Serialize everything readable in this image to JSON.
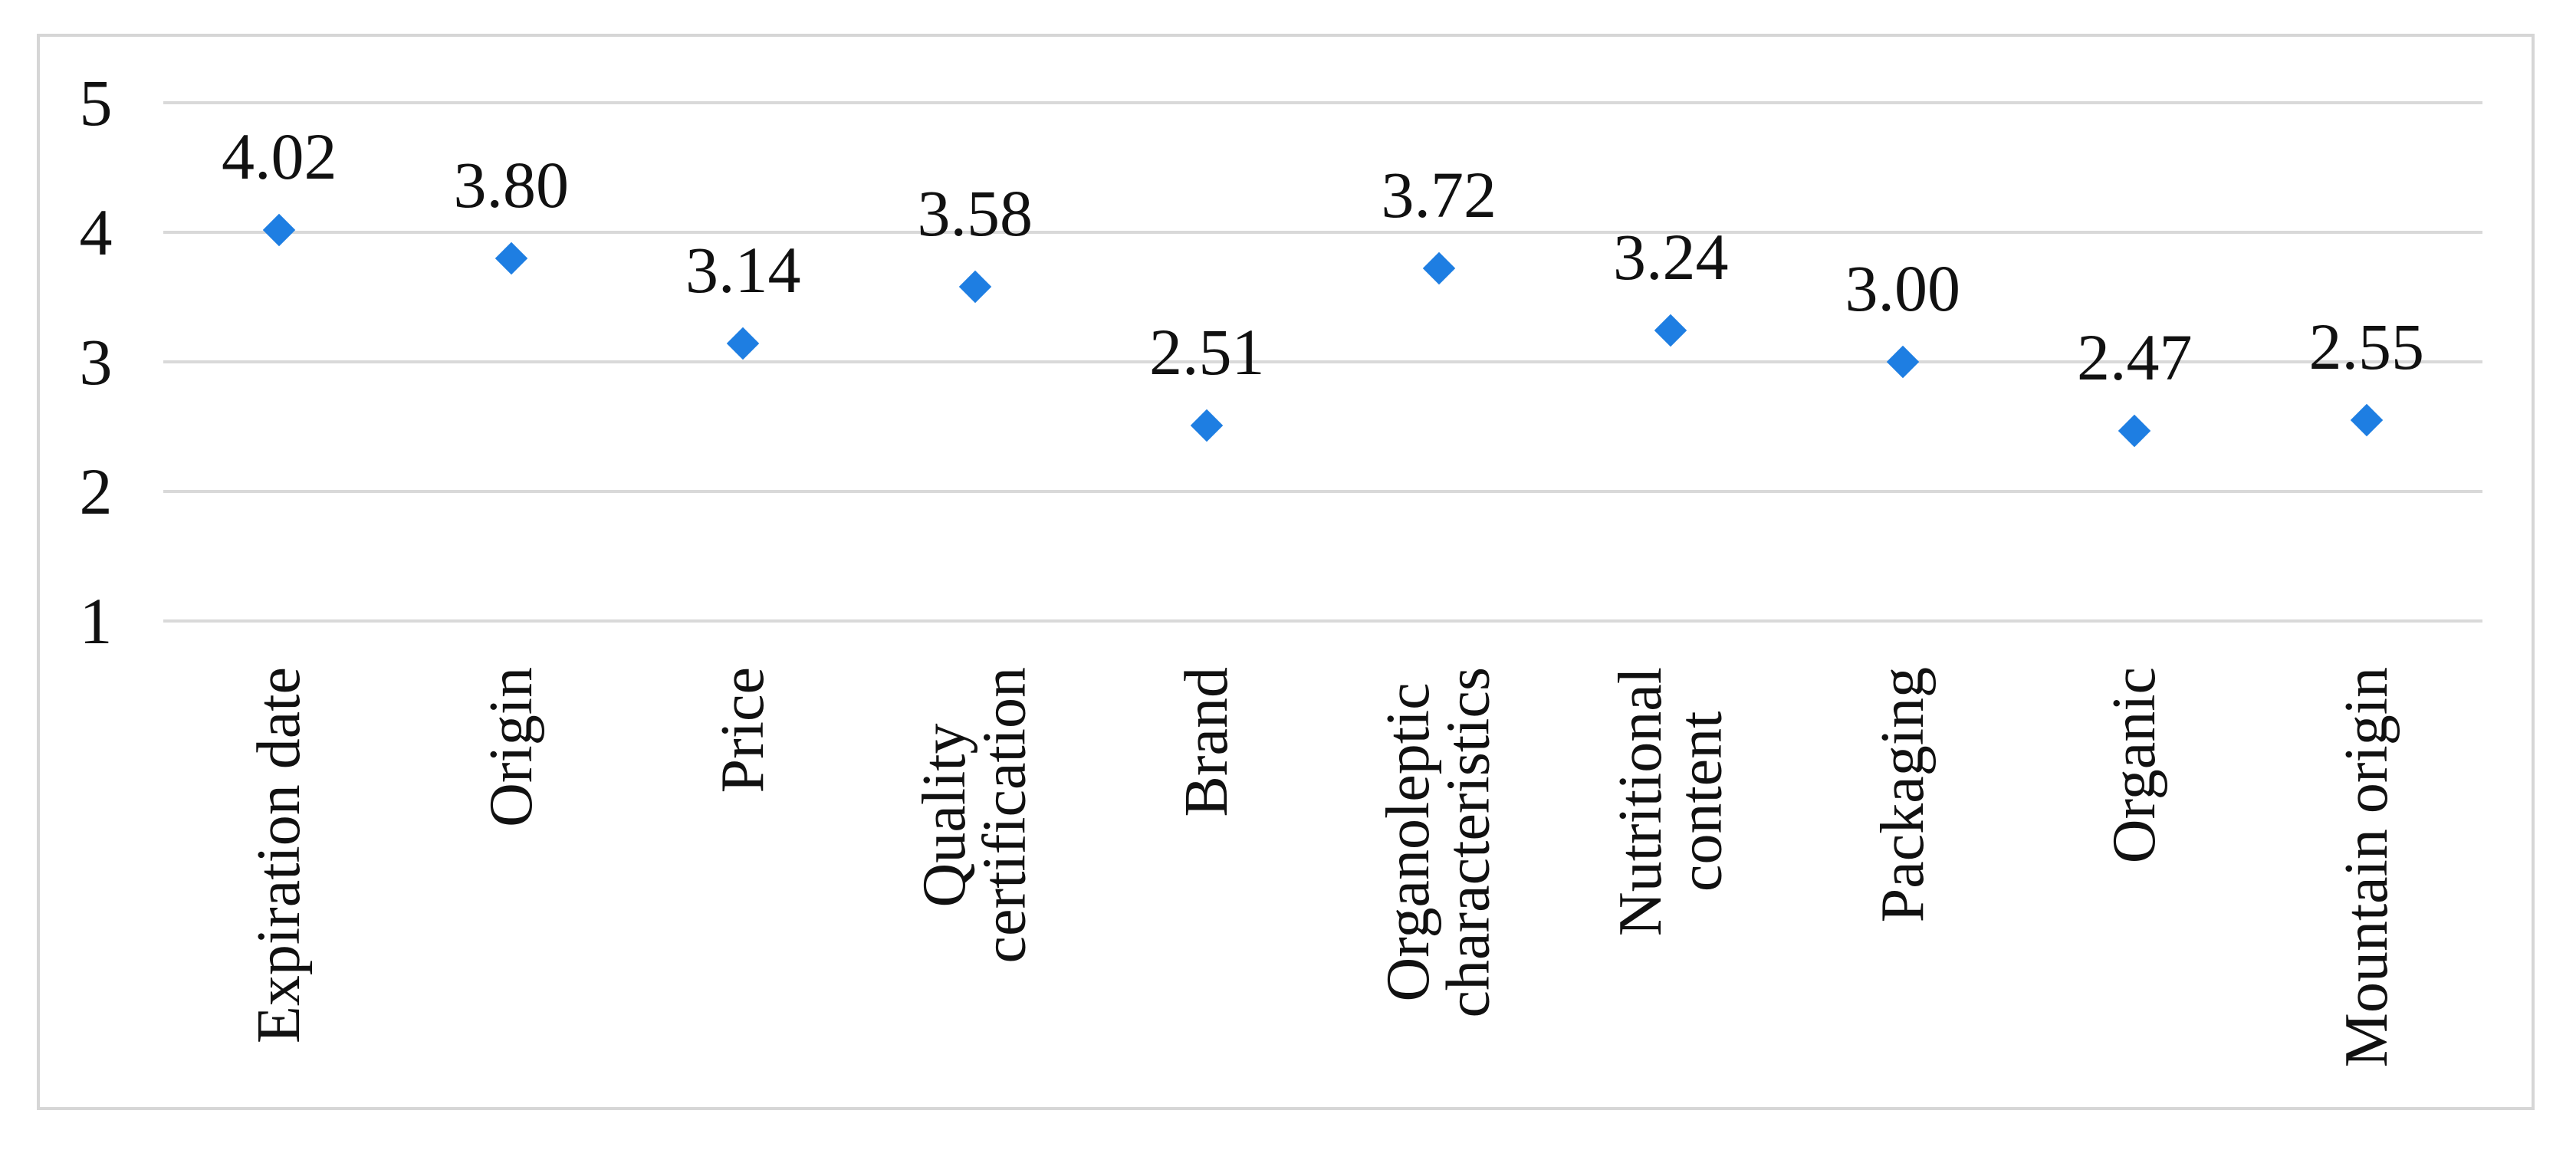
{
  "chart_data": {
    "type": "scatter",
    "title": "",
    "xlabel": "",
    "ylabel": "",
    "categories": [
      "Expiration date",
      "Origin",
      "Price",
      "Quality\ncertification",
      "Brand",
      "Organoleptic\ncharacteristics",
      "Nutritional\ncontent",
      "Packaging",
      "Organic",
      "Mountain origin"
    ],
    "values": [
      4.02,
      3.8,
      3.14,
      3.58,
      2.51,
      3.72,
      3.24,
      3.0,
      2.47,
      2.55
    ],
    "data_labels": [
      "4.02",
      "3.80",
      "3.14",
      "3.58",
      "2.51",
      "3.72",
      "3.24",
      "3.00",
      "2.47",
      "2.55"
    ],
    "y_ticks": [
      5,
      4,
      3,
      2,
      1
    ],
    "ylim": [
      1,
      5
    ],
    "grid": true,
    "legend_position": "none",
    "marker_shape": "diamond",
    "colors": {
      "marker": "#1e7ee2",
      "gridline": "#d9d9d9",
      "frame_border": "#d6d6d6",
      "text": "#111111",
      "background": "#ffffff"
    }
  }
}
